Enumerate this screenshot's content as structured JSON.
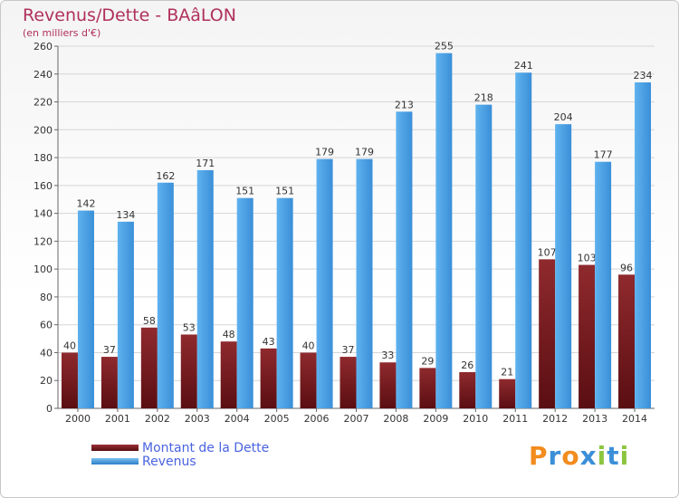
{
  "chart_data": {
    "type": "bar",
    "title": "Revenus/Dette - BA&#x0E0;LON",
    "title_text": "Revenus/Dette - BAâLON",
    "subtitle": "(en milliers d'€)",
    "categories": [
      "2000",
      "2001",
      "2002",
      "2003",
      "2004",
      "2005",
      "2006",
      "2007",
      "2008",
      "2009",
      "2010",
      "2011",
      "2012",
      "2013",
      "2014"
    ],
    "series": [
      {
        "name": "Montant de la Dette",
        "color": "#7a1e22",
        "values": [
          40,
          37,
          58,
          53,
          48,
          43,
          40,
          37,
          33,
          29,
          26,
          21,
          107,
          103,
          96
        ]
      },
      {
        "name": "Revenus",
        "color": "#4aa3e8",
        "values": [
          142,
          134,
          162,
          171,
          151,
          151,
          179,
          179,
          213,
          255,
          218,
          241,
          204,
          177,
          234
        ]
      }
    ],
    "ylim": [
      0,
      260
    ],
    "yticks": [
      0,
      20,
      40,
      60,
      80,
      100,
      120,
      140,
      160,
      180,
      200,
      220,
      240,
      260
    ],
    "grid": true,
    "legend_position": "bottom-left"
  },
  "logo": {
    "letters": [
      "P",
      "r",
      "o",
      "x",
      "i",
      "t",
      "i"
    ],
    "colors": [
      "#f28c1e",
      "#3a8fd8",
      "#f28c1e",
      "#3a8fd8",
      "#8cc63f",
      "#3a8fd8",
      "#8cc63f"
    ]
  }
}
